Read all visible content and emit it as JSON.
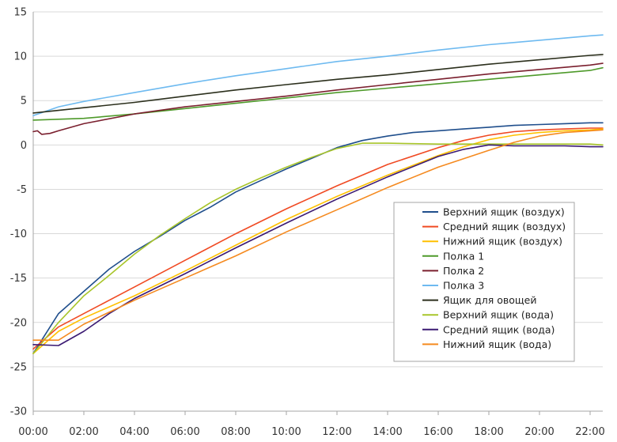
{
  "chart_data": {
    "type": "line",
    "title": "",
    "xlabel": "",
    "ylabel": "",
    "ylim": [
      -30,
      15
    ],
    "yticks": [
      15,
      10,
      5,
      0,
      -5,
      -10,
      -15,
      -20,
      -25,
      -30
    ],
    "xlim": [
      "00:00",
      "22:30"
    ],
    "xticks": [
      "00:00",
      "02:00",
      "04:00",
      "06:00",
      "08:00",
      "10:00",
      "12:00",
      "14:00",
      "16:00",
      "18:00",
      "20:00",
      "22:00"
    ],
    "grid": "horizontal",
    "legend_position": "right",
    "series": [
      {
        "name": "Верхний ящик (воздух)",
        "color": "#1f4e8c",
        "x": [
          "00:00",
          "01:00",
          "02:00",
          "03:00",
          "04:00",
          "05:00",
          "06:00",
          "07:00",
          "08:00",
          "09:00",
          "10:00",
          "11:00",
          "12:00",
          "13:00",
          "14:00",
          "15:00",
          "16:00",
          "17:00",
          "18:00",
          "19:00",
          "20:00",
          "21:00",
          "22:00",
          "22:30"
        ],
        "y": [
          -23.5,
          -19,
          -16.5,
          -14,
          -12,
          -10.3,
          -8.5,
          -7,
          -5.3,
          -4,
          -2.7,
          -1.5,
          -0.3,
          0.5,
          1,
          1.4,
          1.6,
          1.8,
          2,
          2.2,
          2.3,
          2.4,
          2.5,
          2.5
        ]
      },
      {
        "name": "Средний ящик (воздух)",
        "color": "#f04a23",
        "x": [
          "00:00",
          "01:00",
          "02:00",
          "04:00",
          "06:00",
          "08:00",
          "10:00",
          "12:00",
          "14:00",
          "16:00",
          "17:00",
          "18:00",
          "19:00",
          "20:00",
          "21:00",
          "22:00",
          "22:30"
        ],
        "y": [
          -23,
          -20.5,
          -19,
          -16,
          -13,
          -10,
          -7.2,
          -4.6,
          -2.2,
          -0.3,
          0.5,
          1.1,
          1.5,
          1.7,
          1.8,
          1.9,
          1.9
        ]
      },
      {
        "name": "Нижний ящик (воздух)",
        "color": "#ffc000",
        "x": [
          "00:00",
          "01:00",
          "02:00",
          "04:00",
          "06:00",
          "08:00",
          "10:00",
          "12:00",
          "14:00",
          "16:00",
          "17:00",
          "18:00",
          "19:00",
          "20:00",
          "21:00",
          "22:00",
          "22:30"
        ],
        "y": [
          -23.5,
          -21,
          -19.5,
          -17,
          -14.2,
          -11.3,
          -8.4,
          -5.8,
          -3.4,
          -1.2,
          -0.2,
          0.6,
          1.1,
          1.4,
          1.6,
          1.7,
          1.8
        ]
      },
      {
        "name": "Полка 1",
        "color": "#4e9a2a",
        "x": [
          "00:00",
          "02:00",
          "04:00",
          "06:00",
          "08:00",
          "10:00",
          "12:00",
          "14:00",
          "16:00",
          "18:00",
          "20:00",
          "22:00",
          "22:30"
        ],
        "y": [
          2.8,
          3,
          3.5,
          4.1,
          4.7,
          5.3,
          5.9,
          6.4,
          6.9,
          7.4,
          7.9,
          8.4,
          8.7
        ]
      },
      {
        "name": "Полка 2",
        "color": "#7a1f2e",
        "x": [
          "00:00",
          "00:10",
          "00:20",
          "00:40",
          "01:00",
          "02:00",
          "04:00",
          "06:00",
          "08:00",
          "10:00",
          "12:00",
          "14:00",
          "16:00",
          "18:00",
          "20:00",
          "22:00",
          "22:30"
        ],
        "y": [
          1.5,
          1.6,
          1.2,
          1.3,
          1.6,
          2.4,
          3.5,
          4.3,
          4.9,
          5.5,
          6.2,
          6.8,
          7.4,
          8,
          8.5,
          9,
          9.2
        ]
      },
      {
        "name": "Полка 3",
        "color": "#6ebaf0",
        "x": [
          "00:00",
          "01:00",
          "02:00",
          "04:00",
          "06:00",
          "08:00",
          "10:00",
          "12:00",
          "14:00",
          "16:00",
          "18:00",
          "20:00",
          "22:00",
          "22:30"
        ],
        "y": [
          3.3,
          4.3,
          4.9,
          5.9,
          6.9,
          7.8,
          8.6,
          9.4,
          10,
          10.7,
          11.3,
          11.8,
          12.3,
          12.4
        ]
      },
      {
        "name": "Ящик для овощей",
        "color": "#2b2f1c",
        "x": [
          "00:00",
          "02:00",
          "04:00",
          "06:00",
          "08:00",
          "10:00",
          "12:00",
          "14:00",
          "16:00",
          "18:00",
          "20:00",
          "22:00",
          "22:30"
        ],
        "y": [
          3.6,
          4.2,
          4.8,
          5.5,
          6.2,
          6.8,
          7.4,
          7.9,
          8.5,
          9.1,
          9.6,
          10.1,
          10.2
        ]
      },
      {
        "name": "Верхний ящик (вода)",
        "color": "#a8c52a",
        "x": [
          "00:00",
          "01:00",
          "02:00",
          "03:00",
          "04:00",
          "05:00",
          "06:00",
          "07:00",
          "08:00",
          "09:00",
          "10:00",
          "11:00",
          "12:00",
          "13:00",
          "13:30",
          "14:00",
          "16:00",
          "18:00",
          "20:00",
          "22:00",
          "22:30"
        ],
        "y": [
          -23.5,
          -20,
          -17,
          -14.7,
          -12.3,
          -10.2,
          -8.3,
          -6.5,
          -5,
          -3.7,
          -2.5,
          -1.4,
          -0.4,
          0.2,
          0.2,
          0.2,
          0.1,
          0.1,
          0.1,
          0.1,
          0
        ]
      },
      {
        "name": "Средний ящик (вода)",
        "color": "#3b1a73",
        "x": [
          "00:00",
          "01:00",
          "02:00",
          "03:00",
          "04:00",
          "06:00",
          "08:00",
          "10:00",
          "12:00",
          "14:00",
          "16:00",
          "17:00",
          "18:00",
          "19:00",
          "20:00",
          "21:00",
          "22:00",
          "22:30"
        ],
        "y": [
          -22.5,
          -22.6,
          -21,
          -19,
          -17.3,
          -14.5,
          -11.6,
          -8.8,
          -6.1,
          -3.6,
          -1.3,
          -0.5,
          0,
          -0.1,
          -0.1,
          -0.1,
          -0.2,
          -0.2
        ]
      },
      {
        "name": "Нижний ящик (вода)",
        "color": "#f58a1f",
        "x": [
          "00:00",
          "01:00",
          "02:00",
          "04:00",
          "06:00",
          "08:00",
          "10:00",
          "12:00",
          "14:00",
          "16:00",
          "18:00",
          "19:00",
          "20:00",
          "21:00",
          "22:00",
          "22:30"
        ],
        "y": [
          -22,
          -22,
          -20.2,
          -17.5,
          -15,
          -12.5,
          -9.8,
          -7.3,
          -4.8,
          -2.5,
          -0.6,
          0.3,
          1,
          1.4,
          1.6,
          1.7
        ]
      }
    ]
  }
}
